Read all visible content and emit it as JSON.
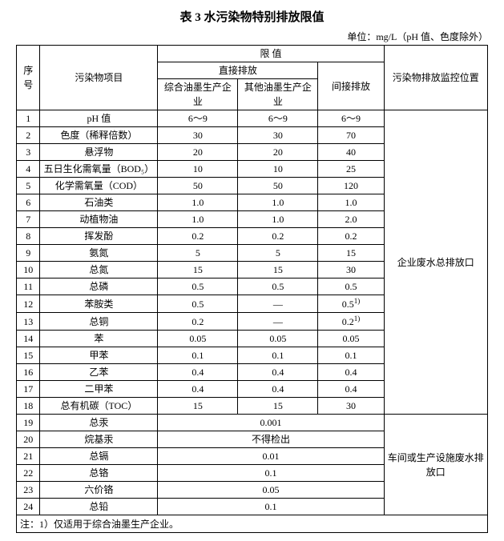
{
  "title": "表 3  水污染物特别排放限值",
  "unit": "单位：mg/L（pH 值、色度除外）",
  "headers": {
    "seq": "序号",
    "pollutant": "污染物项目",
    "limit": "限  值",
    "direct": "直接排放",
    "indirect": "间接排放",
    "d1": "综合油墨生产企业",
    "d2": "其他油墨生产企业",
    "location": "污染物排放监控位置"
  },
  "group1_location": "企业废水总排放口",
  "group2_location": "车间或生产设施废水排放口",
  "rows_g1": [
    {
      "n": "1",
      "p": "pH 值",
      "a": "6～9",
      "b": "6～9",
      "c": "6～9"
    },
    {
      "n": "2",
      "p": "色度（稀释倍数）",
      "a": "30",
      "b": "30",
      "c": "70"
    },
    {
      "n": "3",
      "p": "悬浮物",
      "a": "20",
      "b": "20",
      "c": "40"
    },
    {
      "n": "4",
      "p": "五日生化需氧量（BOD₅）",
      "a": "10",
      "b": "10",
      "c": "25"
    },
    {
      "n": "5",
      "p": "化学需氧量（COD）",
      "a": "50",
      "b": "50",
      "c": "120"
    },
    {
      "n": "6",
      "p": "石油类",
      "a": "1.0",
      "b": "1.0",
      "c": "1.0"
    },
    {
      "n": "7",
      "p": "动植物油",
      "a": "1.0",
      "b": "1.0",
      "c": "2.0"
    },
    {
      "n": "8",
      "p": "挥发酚",
      "a": "0.2",
      "b": "0.2",
      "c": "0.2"
    },
    {
      "n": "9",
      "p": "氨氮",
      "a": "5",
      "b": "5",
      "c": "15"
    },
    {
      "n": "10",
      "p": "总氮",
      "a": "15",
      "b": "15",
      "c": "30"
    },
    {
      "n": "11",
      "p": "总磷",
      "a": "0.5",
      "b": "0.5",
      "c": "0.5"
    },
    {
      "n": "12",
      "p": "苯胺类",
      "a": "0.5",
      "b": "—",
      "c": "0.5",
      "csup": "1)"
    },
    {
      "n": "13",
      "p": "总铜",
      "a": "0.2",
      "b": "—",
      "c": "0.2",
      "csup": "1)"
    },
    {
      "n": "14",
      "p": "苯",
      "a": "0.05",
      "b": "0.05",
      "c": "0.05"
    },
    {
      "n": "15",
      "p": "甲苯",
      "a": "0.1",
      "b": "0.1",
      "c": "0.1"
    },
    {
      "n": "16",
      "p": "乙苯",
      "a": "0.4",
      "b": "0.4",
      "c": "0.4"
    },
    {
      "n": "17",
      "p": "二甲苯",
      "a": "0.4",
      "b": "0.4",
      "c": "0.4"
    },
    {
      "n": "18",
      "p": "总有机碳（TOC）",
      "a": "15",
      "b": "15",
      "c": "30"
    }
  ],
  "rows_g2": [
    {
      "n": "19",
      "p": "总汞",
      "v": "0.001"
    },
    {
      "n": "20",
      "p": "烷基汞",
      "v": "不得检出"
    },
    {
      "n": "21",
      "p": "总镉",
      "v": "0.01"
    },
    {
      "n": "22",
      "p": "总铬",
      "v": "0.1"
    },
    {
      "n": "23",
      "p": "六价铬",
      "v": "0.05"
    },
    {
      "n": "24",
      "p": "总铅",
      "v": "0.1"
    }
  ],
  "note": "注：1）仅适用于综合油墨生产企业。"
}
